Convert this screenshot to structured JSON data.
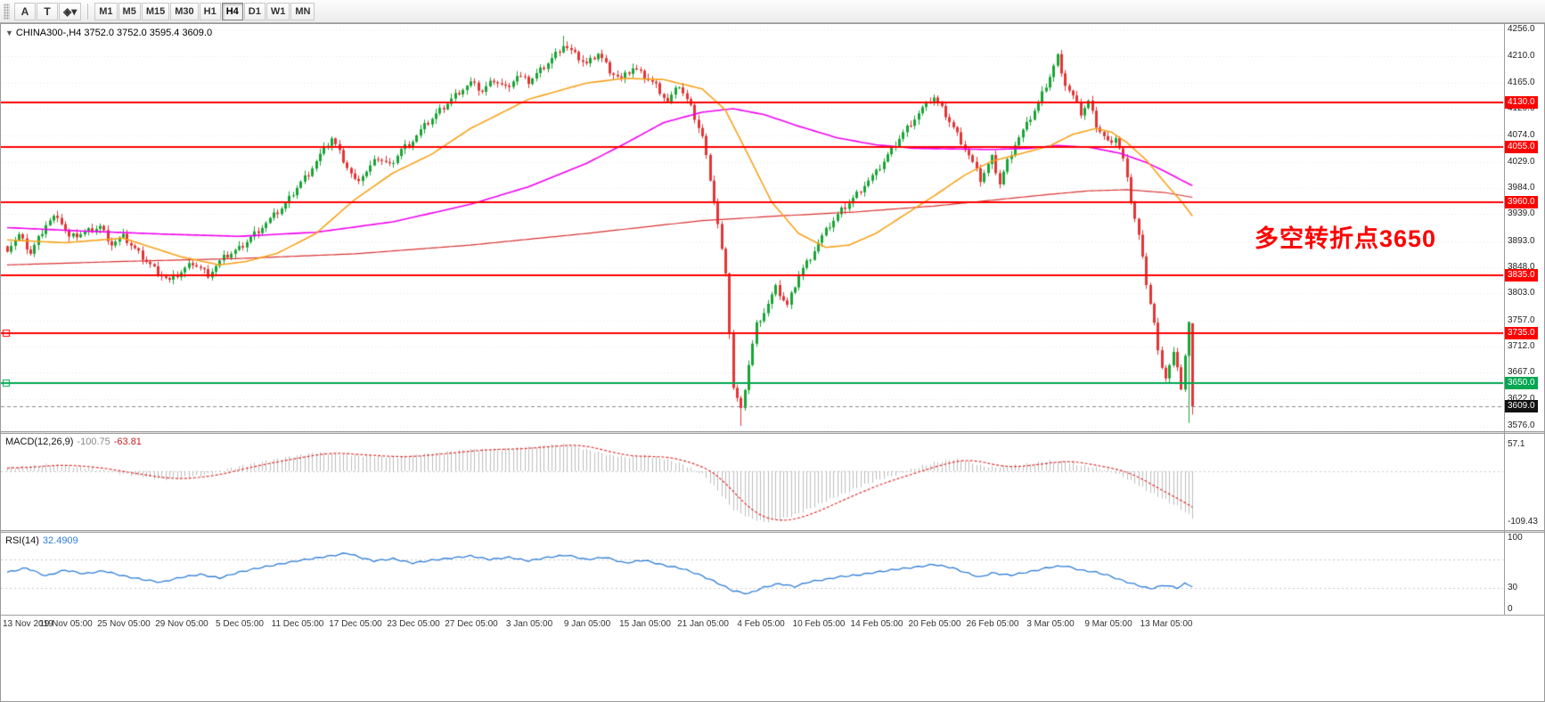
{
  "toolbar": {
    "tools": [
      {
        "id": "text-tool-button",
        "glyph": "A"
      },
      {
        "id": "textbox-tool-button",
        "glyph": "T"
      },
      {
        "id": "shapes-tool-button",
        "glyph": "◈▾"
      }
    ],
    "timeframes": [
      "M1",
      "M5",
      "M15",
      "M30",
      "H1",
      "H4",
      "D1",
      "W1",
      "MN"
    ],
    "active_timeframe": "H4"
  },
  "symbol_header": {
    "text": "CHINA300-,H4  3752.0 3752.0 3595.4 3609.0"
  },
  "annotation": {
    "text": "多空转折点3650",
    "color": "#ff0000"
  },
  "price_axis": {
    "max": 4256.0,
    "min": 3576.0,
    "ticks": [
      "4256.0",
      "4210.0",
      "4165.0",
      "4120.0",
      "4074.0",
      "4029.0",
      "3984.0",
      "3939.0",
      "3893.0",
      "3848.0",
      "3803.0",
      "3757.0",
      "3712.0",
      "3667.0",
      "3622.0",
      "3576.0"
    ]
  },
  "hlines": [
    {
      "price": 4130.0,
      "label": "4130.0",
      "color": "#ff0000",
      "marker": false
    },
    {
      "price": 4055.0,
      "label": "4055.0",
      "color": "#ff0000",
      "marker": false
    },
    {
      "price": 3960.0,
      "label": "3960.0",
      "color": "#ff0000",
      "marker": false
    },
    {
      "price": 3835.0,
      "label": "3835.0",
      "color": "#ff0000",
      "marker": false
    },
    {
      "price": 3735.0,
      "label": "3735.0",
      "color": "#ff0000",
      "marker": true
    },
    {
      "price": 3650.0,
      "label": "3650.0",
      "color": "#00a651",
      "marker": true
    }
  ],
  "current_price": {
    "price": 3609.0,
    "label": "3609.0",
    "bg": "#111111"
  },
  "time_axis": {
    "labels": [
      "13 Nov 2019",
      "19 Nov 05:00",
      "25 Nov 05:00",
      "29 Nov 05:00",
      "5 Dec 05:00",
      "11 Dec 05:00",
      "17 Dec 05:00",
      "23 Dec 05:00",
      "27 Dec 05:00",
      "3 Jan 05:00",
      "9 Jan 05:00",
      "15 Jan 05:00",
      "21 Jan 05:00",
      "4 Feb 05:00",
      "10 Feb 05:00",
      "14 Feb 05:00",
      "20 Feb 05:00",
      "26 Feb 05:00",
      "3 Mar 05:00",
      "9 Mar 05:00",
      "13 Mar 05:00"
    ]
  },
  "chart_data": {
    "type": "candlestick+indicators",
    "symbol": "CHINA300-",
    "timeframe": "H4",
    "ohlc_current": {
      "open": 3752.0,
      "high": 3752.0,
      "low": 3595.4,
      "close": 3609.0
    },
    "n_candles": 308,
    "close_waypoints": [
      [
        0,
        3880
      ],
      [
        3,
        3902
      ],
      [
        6,
        3872
      ],
      [
        10,
        3922
      ],
      [
        13,
        3938
      ],
      [
        16,
        3898
      ],
      [
        20,
        3908
      ],
      [
        24,
        3918
      ],
      [
        27,
        3888
      ],
      [
        30,
        3900
      ],
      [
        34,
        3872
      ],
      [
        38,
        3846
      ],
      [
        42,
        3824
      ],
      [
        45,
        3840
      ],
      [
        48,
        3856
      ],
      [
        52,
        3836
      ],
      [
        56,
        3864
      ],
      [
        60,
        3880
      ],
      [
        64,
        3906
      ],
      [
        68,
        3930
      ],
      [
        72,
        3956
      ],
      [
        75,
        3986
      ],
      [
        78,
        4010
      ],
      [
        81,
        4040
      ],
      [
        84,
        4070
      ],
      [
        87,
        4032
      ],
      [
        90,
        3996
      ],
      [
        93,
        4012
      ],
      [
        96,
        4036
      ],
      [
        99,
        4022
      ],
      [
        102,
        4050
      ],
      [
        105,
        4066
      ],
      [
        108,
        4090
      ],
      [
        111,
        4110
      ],
      [
        114,
        4130
      ],
      [
        117,
        4150
      ],
      [
        120,
        4164
      ],
      [
        123,
        4150
      ],
      [
        126,
        4170
      ],
      [
        129,
        4156
      ],
      [
        132,
        4176
      ],
      [
        135,
        4166
      ],
      [
        138,
        4186
      ],
      [
        141,
        4206
      ],
      [
        144,
        4230
      ],
      [
        147,
        4212
      ],
      [
        150,
        4196
      ],
      [
        153,
        4216
      ],
      [
        156,
        4186
      ],
      [
        159,
        4170
      ],
      [
        162,
        4190
      ],
      [
        165,
        4176
      ],
      [
        168,
        4160
      ],
      [
        171,
        4132
      ],
      [
        174,
        4160
      ],
      [
        177,
        4122
      ],
      [
        180,
        4072
      ],
      [
        182,
        4002
      ],
      [
        184,
        3922
      ],
      [
        186,
        3832
      ],
      [
        188,
        3642
      ],
      [
        190,
        3602
      ],
      [
        192,
        3682
      ],
      [
        194,
        3750
      ],
      [
        196,
        3772
      ],
      [
        199,
        3812
      ],
      [
        202,
        3782
      ],
      [
        205,
        3836
      ],
      [
        208,
        3866
      ],
      [
        210,
        3890
      ],
      [
        213,
        3920
      ],
      [
        216,
        3946
      ],
      [
        219,
        3966
      ],
      [
        222,
        3990
      ],
      [
        225,
        4010
      ],
      [
        228,
        4040
      ],
      [
        231,
        4070
      ],
      [
        234,
        4096
      ],
      [
        237,
        4120
      ],
      [
        240,
        4140
      ],
      [
        243,
        4110
      ],
      [
        246,
        4076
      ],
      [
        249,
        4040
      ],
      [
        252,
        3998
      ],
      [
        255,
        4036
      ],
      [
        257,
        3992
      ],
      [
        259,
        4030
      ],
      [
        261,
        4060
      ],
      [
        264,
        4092
      ],
      [
        267,
        4130
      ],
      [
        270,
        4176
      ],
      [
        272,
        4210
      ],
      [
        274,
        4162
      ],
      [
        276,
        4140
      ],
      [
        278,
        4112
      ],
      [
        280,
        4132
      ],
      [
        282,
        4092
      ],
      [
        285,
        4062
      ],
      [
        287,
        4072
      ],
      [
        289,
        4032
      ],
      [
        291,
        3962
      ],
      [
        293,
        3902
      ],
      [
        295,
        3822
      ],
      [
        297,
        3752
      ],
      [
        298,
        3702
      ],
      [
        300,
        3660
      ],
      [
        302,
        3700
      ],
      [
        304,
        3642
      ],
      [
        306,
        3752
      ],
      [
        307,
        3609
      ]
    ],
    "high_overrides": [
      [
        144,
        4245
      ]
    ],
    "wick_overrides": [
      [
        190,
        3576
      ],
      [
        306,
        3581
      ]
    ],
    "ma_orange": [
      [
        0,
        3895
      ],
      [
        15,
        3890
      ],
      [
        30,
        3898
      ],
      [
        45,
        3866
      ],
      [
        55,
        3852
      ],
      [
        62,
        3858
      ],
      [
        70,
        3872
      ],
      [
        80,
        3906
      ],
      [
        90,
        3964
      ],
      [
        100,
        4010
      ],
      [
        110,
        4042
      ],
      [
        120,
        4086
      ],
      [
        135,
        4136
      ],
      [
        150,
        4164
      ],
      [
        160,
        4172
      ],
      [
        170,
        4170
      ],
      [
        180,
        4154
      ],
      [
        186,
        4118
      ],
      [
        192,
        4040
      ],
      [
        198,
        3960
      ],
      [
        205,
        3906
      ],
      [
        212,
        3882
      ],
      [
        218,
        3886
      ],
      [
        225,
        3906
      ],
      [
        232,
        3936
      ],
      [
        240,
        3970
      ],
      [
        248,
        4006
      ],
      [
        255,
        4030
      ],
      [
        262,
        4042
      ],
      [
        270,
        4056
      ],
      [
        276,
        4076
      ],
      [
        282,
        4086
      ],
      [
        286,
        4080
      ],
      [
        290,
        4062
      ],
      [
        295,
        4032
      ],
      [
        300,
        3992
      ],
      [
        304,
        3962
      ],
      [
        307,
        3936
      ]
    ],
    "ma_magenta": [
      [
        0,
        3916
      ],
      [
        20,
        3910
      ],
      [
        40,
        3905
      ],
      [
        60,
        3901
      ],
      [
        80,
        3908
      ],
      [
        100,
        3926
      ],
      [
        120,
        3956
      ],
      [
        135,
        3986
      ],
      [
        150,
        4026
      ],
      [
        160,
        4060
      ],
      [
        170,
        4096
      ],
      [
        180,
        4114
      ],
      [
        188,
        4120
      ],
      [
        196,
        4110
      ],
      [
        205,
        4090
      ],
      [
        215,
        4070
      ],
      [
        225,
        4058
      ],
      [
        235,
        4052
      ],
      [
        245,
        4051
      ],
      [
        255,
        4050
      ],
      [
        265,
        4052
      ],
      [
        272,
        4057
      ],
      [
        280,
        4054
      ],
      [
        288,
        4044
      ],
      [
        295,
        4028
      ],
      [
        300,
        4012
      ],
      [
        304,
        3998
      ],
      [
        307,
        3988
      ]
    ],
    "ma_red": [
      [
        0,
        3852
      ],
      [
        30,
        3858
      ],
      [
        60,
        3863
      ],
      [
        90,
        3871
      ],
      [
        120,
        3886
      ],
      [
        150,
        3906
      ],
      [
        180,
        3928
      ],
      [
        200,
        3936
      ],
      [
        220,
        3943
      ],
      [
        240,
        3953
      ],
      [
        255,
        3963
      ],
      [
        270,
        3973
      ],
      [
        280,
        3979
      ],
      [
        290,
        3981
      ],
      [
        300,
        3976
      ],
      [
        307,
        3968
      ]
    ],
    "macd": {
      "title": "MACD(12,26,9)",
      "value_main": "-100.75",
      "value_signal": "-63.81",
      "axis_max": "57.1",
      "axis_min": "-109.43",
      "max": 57.1,
      "min": -109.43,
      "waypoints": [
        [
          0,
          6
        ],
        [
          10,
          14
        ],
        [
          20,
          8
        ],
        [
          30,
          -6
        ],
        [
          40,
          -18
        ],
        [
          50,
          -10
        ],
        [
          60,
          10
        ],
        [
          70,
          26
        ],
        [
          80,
          40
        ],
        [
          90,
          34
        ],
        [
          100,
          30
        ],
        [
          110,
          38
        ],
        [
          120,
          46
        ],
        [
          130,
          48
        ],
        [
          140,
          55
        ],
        [
          145,
          57.1
        ],
        [
          150,
          46
        ],
        [
          155,
          36
        ],
        [
          160,
          30
        ],
        [
          165,
          33
        ],
        [
          170,
          26
        ],
        [
          175,
          14
        ],
        [
          180,
          -6
        ],
        [
          184,
          -42
        ],
        [
          188,
          -82
        ],
        [
          192,
          -100
        ],
        [
          196,
          -109.4
        ],
        [
          200,
          -104
        ],
        [
          204,
          -94
        ],
        [
          208,
          -80
        ],
        [
          212,
          -64
        ],
        [
          216,
          -50
        ],
        [
          220,
          -36
        ],
        [
          225,
          -20
        ],
        [
          230,
          -8
        ],
        [
          235,
          6
        ],
        [
          240,
          18
        ],
        [
          245,
          26
        ],
        [
          248,
          22
        ],
        [
          252,
          12
        ],
        [
          255,
          8
        ],
        [
          260,
          11
        ],
        [
          265,
          16
        ],
        [
          270,
          22
        ],
        [
          274,
          20
        ],
        [
          278,
          12
        ],
        [
          282,
          7
        ],
        [
          285,
          2
        ],
        [
          288,
          -8
        ],
        [
          292,
          -26
        ],
        [
          296,
          -46
        ],
        [
          300,
          -62
        ],
        [
          303,
          -76
        ],
        [
          305,
          -88
        ],
        [
          307,
          -100.75
        ]
      ]
    },
    "rsi": {
      "title": "RSI(14)",
      "value": "32.4909",
      "levels": [
        70,
        30
      ],
      "axis_labels": [
        {
          "v": 100,
          "label": "100"
        },
        {
          "v": 30,
          "label": "30"
        },
        {
          "v": 0,
          "label": "0"
        }
      ],
      "waypoints": [
        [
          0,
          52
        ],
        [
          5,
          58
        ],
        [
          10,
          47
        ],
        [
          15,
          55
        ],
        [
          20,
          50
        ],
        [
          25,
          54
        ],
        [
          30,
          47
        ],
        [
          35,
          42
        ],
        [
          40,
          38
        ],
        [
          45,
          45
        ],
        [
          50,
          49
        ],
        [
          55,
          44
        ],
        [
          60,
          52
        ],
        [
          65,
          58
        ],
        [
          70,
          63
        ],
        [
          75,
          68
        ],
        [
          80,
          72
        ],
        [
          85,
          76
        ],
        [
          88,
          79
        ],
        [
          92,
          72
        ],
        [
          95,
          68
        ],
        [
          100,
          71
        ],
        [
          105,
          65
        ],
        [
          110,
          69
        ],
        [
          115,
          72
        ],
        [
          120,
          75
        ],
        [
          125,
          70
        ],
        [
          130,
          73
        ],
        [
          135,
          68
        ],
        [
          140,
          73
        ],
        [
          145,
          76
        ],
        [
          150,
          70
        ],
        [
          155,
          73
        ],
        [
          160,
          65
        ],
        [
          165,
          69
        ],
        [
          170,
          62
        ],
        [
          175,
          57
        ],
        [
          180,
          47
        ],
        [
          184,
          37
        ],
        [
          188,
          26
        ],
        [
          192,
          22
        ],
        [
          196,
          31
        ],
        [
          200,
          36
        ],
        [
          204,
          32
        ],
        [
          208,
          39
        ],
        [
          212,
          42
        ],
        [
          216,
          46
        ],
        [
          220,
          48
        ],
        [
          225,
          52
        ],
        [
          230,
          56
        ],
        [
          235,
          59
        ],
        [
          240,
          63
        ],
        [
          245,
          58
        ],
        [
          248,
          52
        ],
        [
          252,
          45
        ],
        [
          255,
          51
        ],
        [
          260,
          48
        ],
        [
          265,
          53
        ],
        [
          270,
          59
        ],
        [
          274,
          61
        ],
        [
          278,
          55
        ],
        [
          282,
          52
        ],
        [
          285,
          48
        ],
        [
          288,
          42
        ],
        [
          292,
          35
        ],
        [
          296,
          29
        ],
        [
          300,
          34
        ],
        [
          303,
          30
        ],
        [
          305,
          36
        ],
        [
          307,
          32.5
        ]
      ]
    }
  },
  "colors": {
    "up": "#18a434",
    "down": "#e23434",
    "ma_fast": "#f7a21b",
    "ma_mid": "#f000f0",
    "ma_slow": "#d93030",
    "macd_hist": "#bdbdbd",
    "macd_signal": "#e03030",
    "rsi_line": "#2f7ed8",
    "grid": "#e7e7e7",
    "level_dash": "#c8c8c8"
  }
}
